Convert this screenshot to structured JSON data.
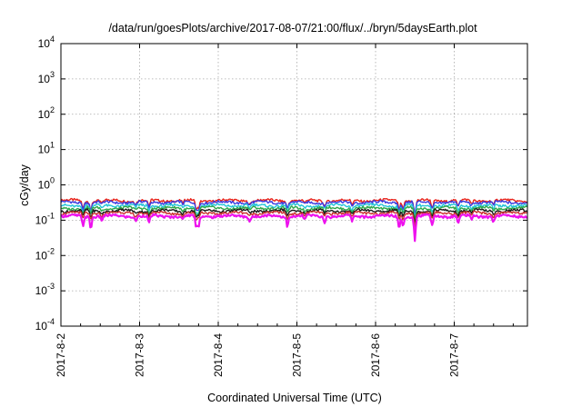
{
  "chart_data": {
    "type": "line",
    "title": "/data/run/goesPlots/archive/2017-08-07/21:00/flux/../bryn/5daysEarth.plot",
    "xlabel": "Coordinated Universal Time (UTC)",
    "ylabel": "cGy/day",
    "yscale": "log",
    "ylim": [
      0.0001,
      10000
    ],
    "xlim": [
      "2017-8-2",
      "2017-8-7 21:00"
    ],
    "x_ticks": [
      "2017-8-2",
      "2017-8-3",
      "2017-8-4",
      "2017-8-5",
      "2017-8-6",
      "2017-8-7"
    ],
    "y_ticks": [
      {
        "base": "10",
        "exp": "-4",
        "value": 0.0001
      },
      {
        "base": "10",
        "exp": "-3",
        "value": 0.001
      },
      {
        "base": "10",
        "exp": "-2",
        "value": 0.01
      },
      {
        "base": "10",
        "exp": "-1",
        "value": 0.1
      },
      {
        "base": "10",
        "exp": "0",
        "value": 1
      },
      {
        "base": "10",
        "exp": "1",
        "value": 10
      },
      {
        "base": "10",
        "exp": "2",
        "value": 100
      },
      {
        "base": "10",
        "exp": "3",
        "value": 1000
      },
      {
        "base": "10",
        "exp": "4",
        "value": 10000
      }
    ],
    "grid": true,
    "legend": "none",
    "series": [
      {
        "color": "#e8231b",
        "baseline": 0.36,
        "dip_depth": 0.6
      },
      {
        "color": "#3a3ae0",
        "baseline": 0.32,
        "dip_depth": 0.5
      },
      {
        "color": "#22c4d8",
        "baseline": 0.26,
        "dip_depth": 0.5
      },
      {
        "color": "#2ea84a",
        "baseline": 0.22,
        "dip_depth": 0.5
      },
      {
        "color": "#1a1a1a",
        "baseline": 0.185,
        "dip_depth": 0.5
      },
      {
        "color": "#c8302e",
        "baseline": 0.16,
        "dip_depth": 0.5
      },
      {
        "color": "#ee11ee",
        "baseline": 0.13,
        "dip_depth": 0.7
      }
    ],
    "dips": [
      {
        "day": 0.28,
        "factor": 0.6
      },
      {
        "day": 0.38,
        "factor": 0.55
      },
      {
        "day": 0.52,
        "factor": 0.8
      },
      {
        "day": 0.95,
        "factor": 0.8
      },
      {
        "day": 1.12,
        "factor": 0.65
      },
      {
        "day": 1.55,
        "factor": 0.8
      },
      {
        "day": 1.72,
        "factor": 0.55
      },
      {
        "day": 1.75,
        "factor": 0.6
      },
      {
        "day": 2.4,
        "factor": 0.8
      },
      {
        "day": 2.88,
        "factor": 0.6
      },
      {
        "day": 3.1,
        "factor": 0.8
      },
      {
        "day": 3.35,
        "factor": 0.75
      },
      {
        "day": 3.7,
        "factor": 0.75
      },
      {
        "day": 4.3,
        "factor": 0.55
      },
      {
        "day": 4.35,
        "factor": 0.6
      },
      {
        "day": 4.5,
        "factor": 0.3
      },
      {
        "day": 4.72,
        "factor": 0.6
      },
      {
        "day": 5.05,
        "factor": 0.7
      },
      {
        "day": 5.22,
        "factor": 0.8
      },
      {
        "day": 5.5,
        "factor": 0.75
      }
    ]
  }
}
